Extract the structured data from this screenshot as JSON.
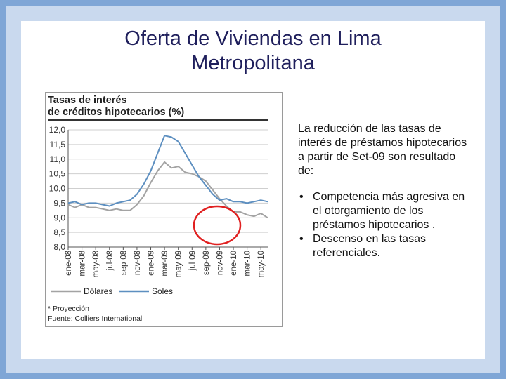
{
  "slide": {
    "title_line1": "Oferta de Viviendas en Lima",
    "title_line2": "Metropolitana",
    "intro": "La reducción de las tasas de interés de préstamos hipotecarios a partir de Set-09 son resultado de:",
    "bullets": [
      "Competencia más agresiva en el otorgamiento de los préstamos hipotecarios .",
      "Descenso en las tasas referenciales."
    ]
  },
  "colors": {
    "title": "#1f1f5c",
    "dolares": "#a3a3a3",
    "soles": "#5d8fc0",
    "highlight_ellipse": "#e02020",
    "header_rule": "#333333"
  },
  "chart_data": {
    "type": "line",
    "title_line1": "Tasas de interés",
    "title_line2": "de créditos hipotecarios (%)",
    "ylim": [
      8.0,
      12.0
    ],
    "y_ticks": [
      "12,0",
      "11,5",
      "11,0",
      "10,5",
      "10,0",
      "9,5",
      "9,0",
      "8,5",
      "8,0"
    ],
    "x_ticks": [
      "ene-08",
      "mar-08",
      "may-08",
      "jul-08",
      "sep-08",
      "nov-08",
      "ene-09",
      "mar-09",
      "may-09",
      "jul-09",
      "sep-09",
      "nov-09",
      "ene-10",
      "mar-10",
      "may-10"
    ],
    "x_range": [
      0,
      29
    ],
    "grid": "horizontal",
    "legend_position": "bottom",
    "series": [
      {
        "name": "Dólares",
        "x": [
          0,
          1,
          2,
          3,
          4,
          5,
          6,
          7,
          8,
          9,
          10,
          11,
          12,
          13,
          14,
          15,
          16,
          17,
          18,
          19,
          20,
          21,
          22,
          23,
          24,
          25,
          26,
          27,
          28,
          29
        ],
        "values": [
          9.45,
          9.35,
          9.45,
          9.35,
          9.35,
          9.3,
          9.25,
          9.3,
          9.25,
          9.25,
          9.45,
          9.75,
          10.2,
          10.6,
          10.9,
          10.7,
          10.75,
          10.55,
          10.5,
          10.4,
          10.25,
          9.95,
          9.65,
          9.4,
          9.2,
          9.2,
          9.1,
          9.05,
          9.15,
          9.0
        ]
      },
      {
        "name": "Soles",
        "x": [
          0,
          1,
          2,
          3,
          4,
          5,
          6,
          7,
          8,
          9,
          10,
          11,
          12,
          13,
          14,
          15,
          16,
          17,
          18,
          19,
          20,
          21,
          22,
          23,
          24,
          25,
          26,
          27,
          28,
          29
        ],
        "values": [
          9.5,
          9.55,
          9.45,
          9.5,
          9.5,
          9.45,
          9.4,
          9.5,
          9.55,
          9.6,
          9.8,
          10.15,
          10.6,
          11.2,
          11.8,
          11.75,
          11.6,
          11.2,
          10.8,
          10.4,
          10.1,
          9.8,
          9.6,
          9.65,
          9.55,
          9.55,
          9.5,
          9.55,
          9.6,
          9.55
        ]
      }
    ],
    "annotations": [
      "* Proyección",
      "Fuente: Colliers International"
    ]
  }
}
